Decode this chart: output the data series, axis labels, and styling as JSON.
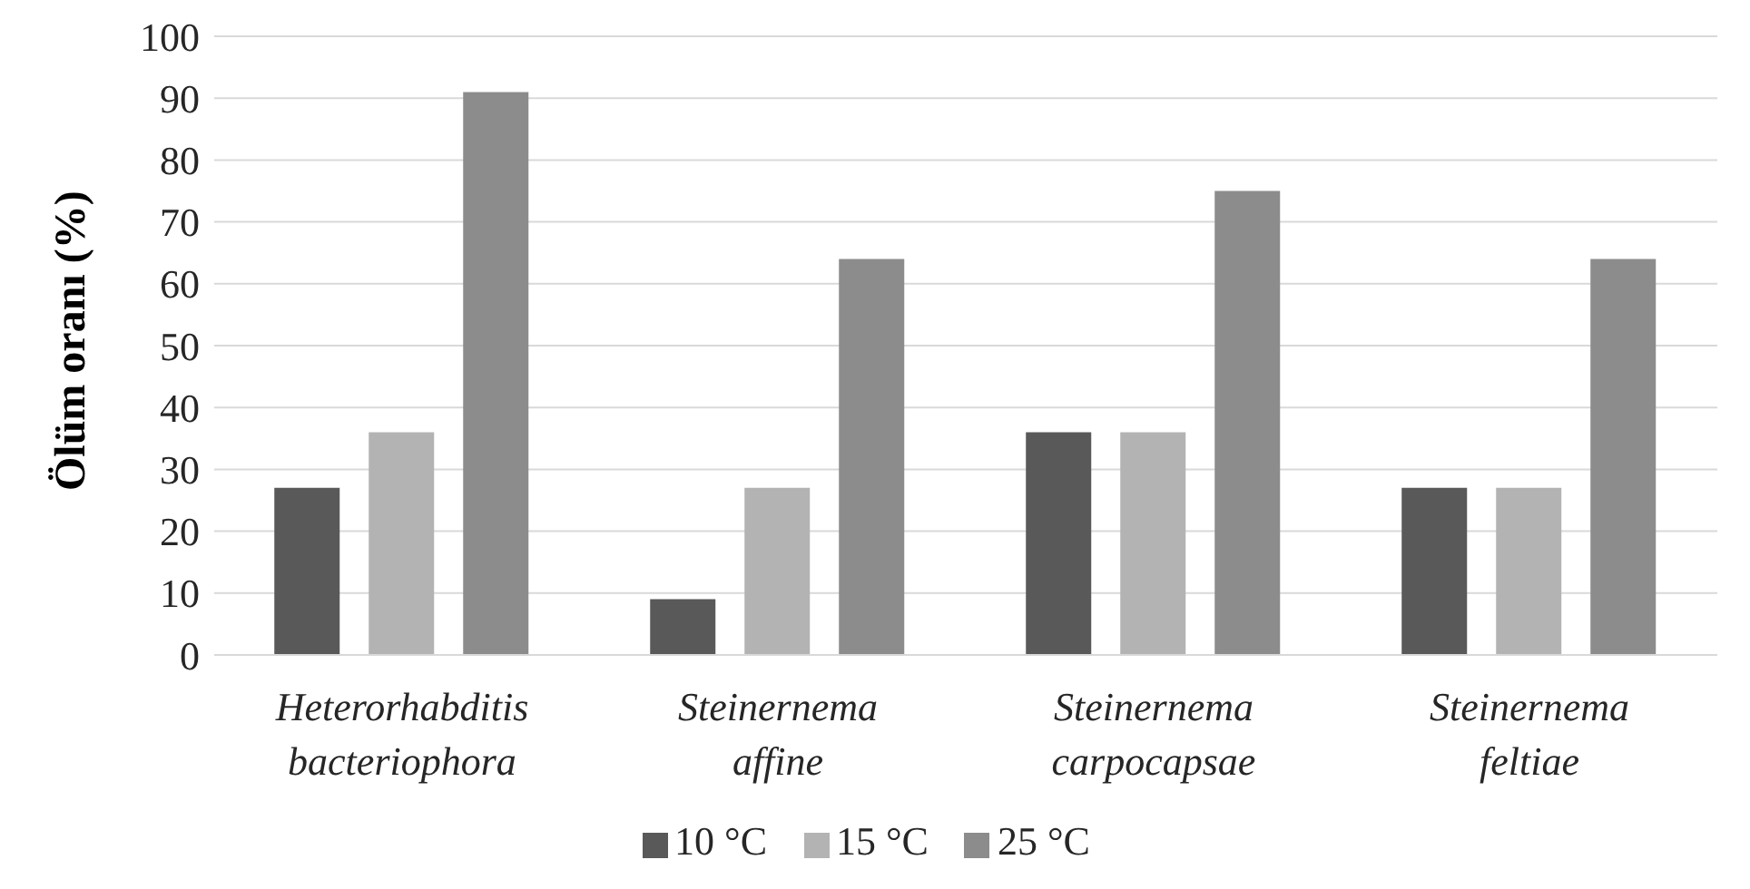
{
  "chart_data": {
    "type": "bar",
    "ylabel": "Ölüm oranı (%)",
    "categories": [
      "Heterorhabditis bacteriophora",
      "Steinernema affine",
      "Steinernema carpocapsae",
      "Steinernema feltiae"
    ],
    "series": [
      {
        "name": "10 °C",
        "color": "#595959",
        "values": [
          27,
          9,
          36,
          27
        ]
      },
      {
        "name": "15 °C",
        "color": "#b3b3b3",
        "values": [
          36,
          27,
          36,
          27
        ]
      },
      {
        "name": "25 °C",
        "color": "#8c8c8c",
        "values": [
          91,
          64,
          75,
          64
        ]
      }
    ],
    "ylim": [
      0,
      100
    ],
    "yticks": [
      0,
      10,
      20,
      30,
      40,
      50,
      60,
      70,
      80,
      90,
      100
    ],
    "grid": "y",
    "legend": "bottom"
  }
}
